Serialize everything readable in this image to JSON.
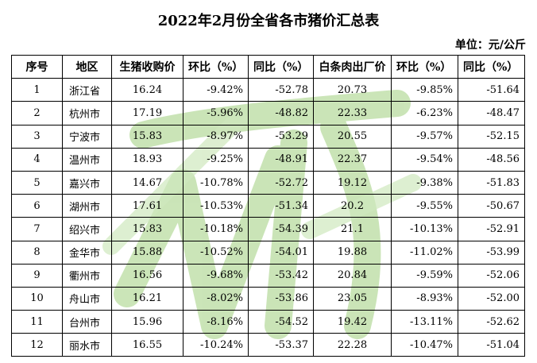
{
  "title": "2022年2月份全省各市猪价汇总表",
  "unit": "单位：元/公斤",
  "headers": [
    "序号",
    "地区",
    "生猪收购价",
    "环比（%）",
    "同比（%）",
    "白条肉出厂价",
    "环比（%）",
    "同比（%）"
  ],
  "rows": [
    [
      "1",
      "浙江省",
      "16.24",
      "-9.42%",
      "-52.78",
      "20.73",
      "-9.85%",
      "-51.64"
    ],
    [
      "2",
      "杭州市",
      "17.19",
      "-5.96%",
      "-48.82",
      "22.33",
      "-6.23%",
      "-48.47"
    ],
    [
      "3",
      "宁波市",
      "15.83",
      "-8.97%",
      "-53.29",
      "20.55",
      "-9.57%",
      "-52.15"
    ],
    [
      "4",
      "温州市",
      "18.93",
      "-9.25%",
      "-48.91",
      "22.37",
      "-9.54%",
      "-48.56"
    ],
    [
      "5",
      "嘉兴市",
      "14.67",
      "-10.78%",
      "-52.72",
      "19.12",
      "-9.38%",
      "-51.83"
    ],
    [
      "6",
      "湖州市",
      "17.61",
      "-10.53%",
      "-51.34",
      "20.2",
      "-9.55%",
      "-50.67"
    ],
    [
      "7",
      "绍兴市",
      "15.83",
      "-10.18%",
      "-54.39",
      "21.1",
      "-10.13%",
      "-52.91"
    ],
    [
      "8",
      "金华市",
      "15.88",
      "-10.52%",
      "-54.01",
      "19.88",
      "-11.02%",
      "-53.99"
    ],
    [
      "9",
      "衢州市",
      "16.56",
      "-9.68%",
      "-53.42",
      "20.84",
      "-9.59%",
      "-52.06"
    ],
    [
      "10",
      "舟山市",
      "16.21",
      "-8.02%",
      "-53.86",
      "23.05",
      "-8.93%",
      "-52.00"
    ],
    [
      "11",
      "台州市",
      "15.96",
      "-8.16%",
      "-54.52",
      "19.42",
      "-13.11%",
      "-52.62"
    ],
    [
      "12",
      "丽水市",
      "16.55",
      "-10.24%",
      "-53.37",
      "22.28",
      "-10.47%",
      "-51.04"
    ]
  ],
  "colors": {
    "watermark": "#b9dca0",
    "border": "#000000"
  }
}
